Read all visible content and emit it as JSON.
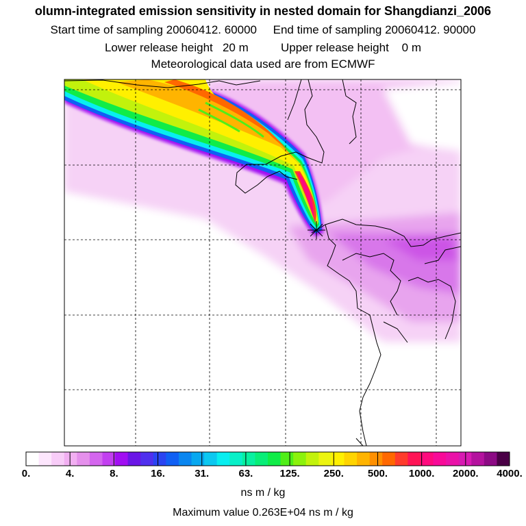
{
  "header": {
    "title": "olumn-integrated emission sensitivity in nested domain for Shangdianzi_2006",
    "sampling": "Start time of sampling 20060412. 60000     End time of sampling 20060412. 90000",
    "release": "Lower release height   20 m          Upper release height    0 m",
    "met": "Meteorological data used are from ECMWF"
  },
  "colorbar": {
    "ticks": [
      "0.",
      "4.",
      "8.",
      "16.",
      "31.",
      "63.",
      "125.",
      "250.",
      "500.",
      "1000.",
      "2000.",
      "4000."
    ],
    "colors": [
      "#ffffff",
      "#fde6fd",
      "#f8ccf8",
      "#f2aff2",
      "#e590ec",
      "#d466ee",
      "#c23ff0",
      "#a10ef2",
      "#6a16e6",
      "#5030ee",
      "#2a44f2",
      "#1060f4",
      "#0a86f0",
      "#08a8f0",
      "#0cc8f0",
      "#08eef0",
      "#08f0c8",
      "#08f0a0",
      "#08ee78",
      "#10ec48",
      "#50ee18",
      "#8cf20c",
      "#c2f20c",
      "#ecf410",
      "#fff000",
      "#ffd400",
      "#ffb400",
      "#ff9000",
      "#ff6800",
      "#ff3c2c",
      "#ff1456",
      "#fe0a7e",
      "#f80a98",
      "#ea12a8",
      "#d81ab2",
      "#b4129e",
      "#8c0a84",
      "#4a0046"
    ],
    "units": "ns m / kg"
  },
  "footer": {
    "max_value": "Maximum value  0.263E+04 ns m / kg"
  }
}
